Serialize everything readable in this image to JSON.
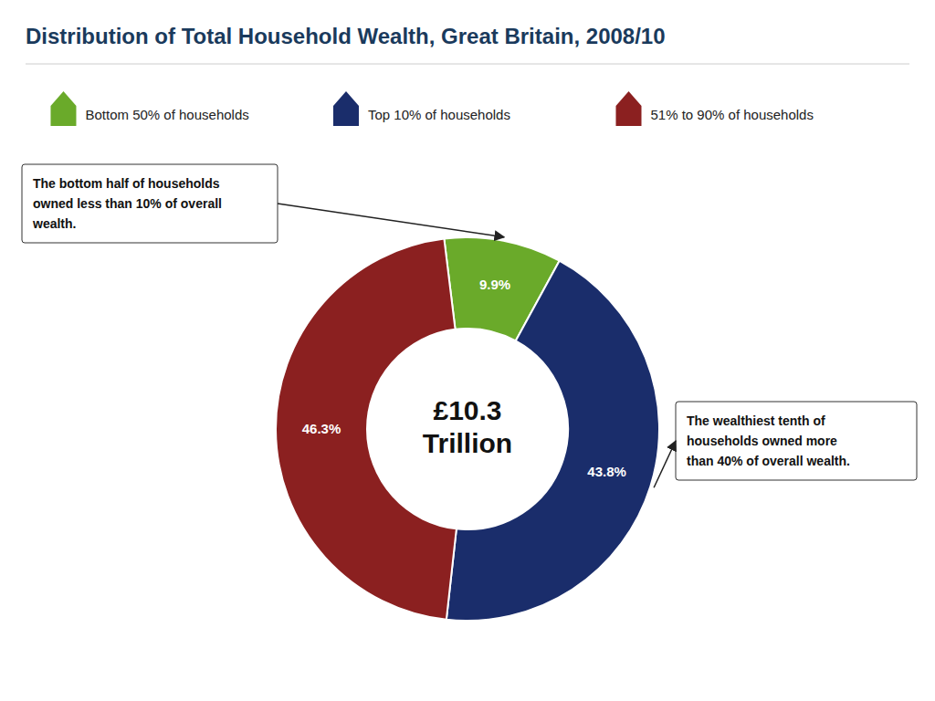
{
  "chart_data": {
    "type": "donut",
    "title": "Distribution of Total Household Wealth, Great Britain, 2008/10",
    "categories": [
      "Bottom 50% of households",
      "Top 10% of households",
      "51% to 90% of households"
    ],
    "values": [
      9.9,
      43.8,
      46.3
    ],
    "value_labels": [
      "9.9%",
      "43.8%",
      "46.3%"
    ],
    "colors": [
      "#6aaa2a",
      "#1a2d6b",
      "#8b2020"
    ],
    "data_labels": true,
    "legend": "top",
    "center_labels": [
      "£10.3",
      "Trillion"
    ],
    "annotations": [
      "The bottom half of households\nowned less than 10% of overall\nwealth.",
      "The wealthiest tenth of\nhouseholds owned more\nthan 40% of overall wealth."
    ]
  }
}
